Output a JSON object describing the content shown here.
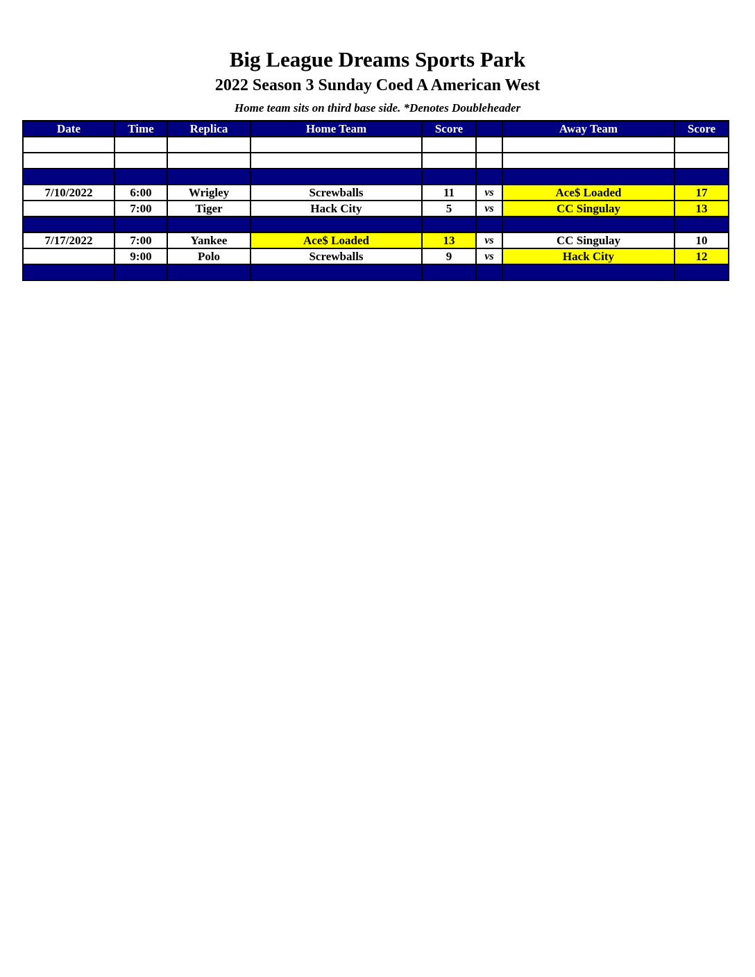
{
  "header": {
    "title": "Big League Dreams Sports Park",
    "subtitle": "2022 Season 3 Sunday Coed A American West",
    "note": "Home team sits on third base side.  *Denotes Doubleheader"
  },
  "colors": {
    "header_bg": "#000080",
    "winner_highlight": "#ffff00"
  },
  "columns": [
    "Date",
    "Time",
    "Replica",
    "Home Team",
    "Score",
    "",
    "Away Team",
    "Score"
  ],
  "rows": [
    {
      "type": "blank",
      "cells": [
        "",
        "",
        "",
        "",
        "",
        "",
        "",
        ""
      ]
    },
    {
      "type": "blank",
      "cells": [
        "",
        "",
        "",
        "",
        "",
        "",
        "",
        ""
      ]
    },
    {
      "type": "separator",
      "cells": [
        "",
        "",
        "",
        "",
        "",
        "",
        "",
        ""
      ]
    },
    {
      "type": "game",
      "cells": [
        "7/10/2022",
        "6:00",
        "Wrigley",
        "Screwballs",
        "11",
        "vs",
        "Ace$ Loaded",
        "17"
      ],
      "winner": "away"
    },
    {
      "type": "game",
      "cells": [
        "",
        "7:00",
        "Tiger",
        "Hack City",
        "5",
        "vs",
        "CC Singulay",
        "13"
      ],
      "winner": "away"
    },
    {
      "type": "separator",
      "cells": [
        "",
        "",
        "",
        "",
        "",
        "",
        "",
        ""
      ]
    },
    {
      "type": "game",
      "cells": [
        "7/17/2022",
        "7:00",
        "Yankee",
        "Ace$ Loaded",
        "13",
        "vs",
        "CC Singulay",
        "10"
      ],
      "winner": "home"
    },
    {
      "type": "game",
      "cells": [
        "",
        "9:00",
        "Polo",
        "Screwballs",
        "9",
        "vs",
        "Hack City",
        "12"
      ],
      "winner": "away"
    },
    {
      "type": "separator",
      "cells": [
        "",
        "",
        "",
        "",
        "",
        "",
        "",
        ""
      ]
    }
  ]
}
